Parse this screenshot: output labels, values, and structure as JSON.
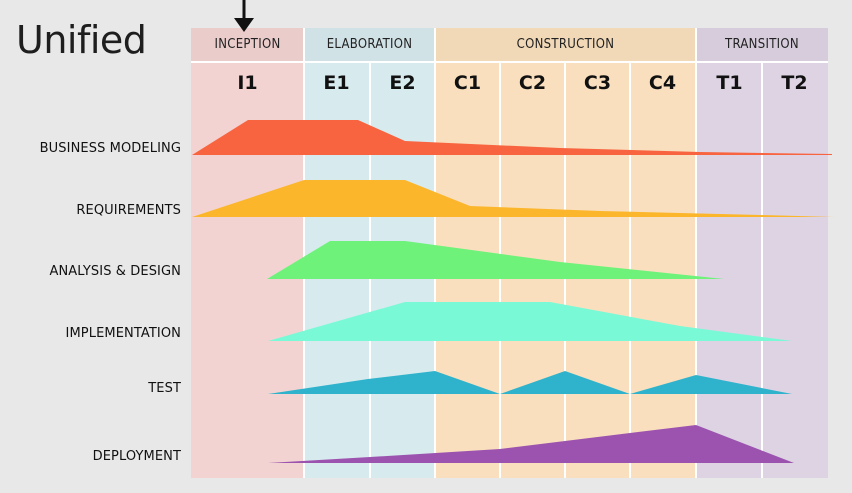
{
  "title": "Unified",
  "phases": [
    "INCEPTION",
    "ELABORATION",
    "CONSTRUCTION",
    "TRANSITION"
  ],
  "iterations": [
    "I1",
    "E1",
    "E2",
    "C1",
    "C2",
    "C3",
    "C4",
    "T1",
    "T2"
  ],
  "disciplines": [
    "BUSINESS MODELING",
    "REQUIREMENTS",
    "ANALYSIS & DESIGN",
    "IMPLEMENTATION",
    "TEST",
    "DEPLOYMENT"
  ],
  "colors": {
    "inception_bg": "#f2d3d2",
    "elaboration_bg": "#d7eaee",
    "construction_bg": "#f9dfbd",
    "transition_bg": "#ddd3e3",
    "business_modeling": "#f86440",
    "requirements": "#fbb62c",
    "analysis_design": "#6ef27a",
    "implementation": "#7af9d6",
    "test": "#2fb3cc",
    "deployment": "#9c53b0"
  }
}
